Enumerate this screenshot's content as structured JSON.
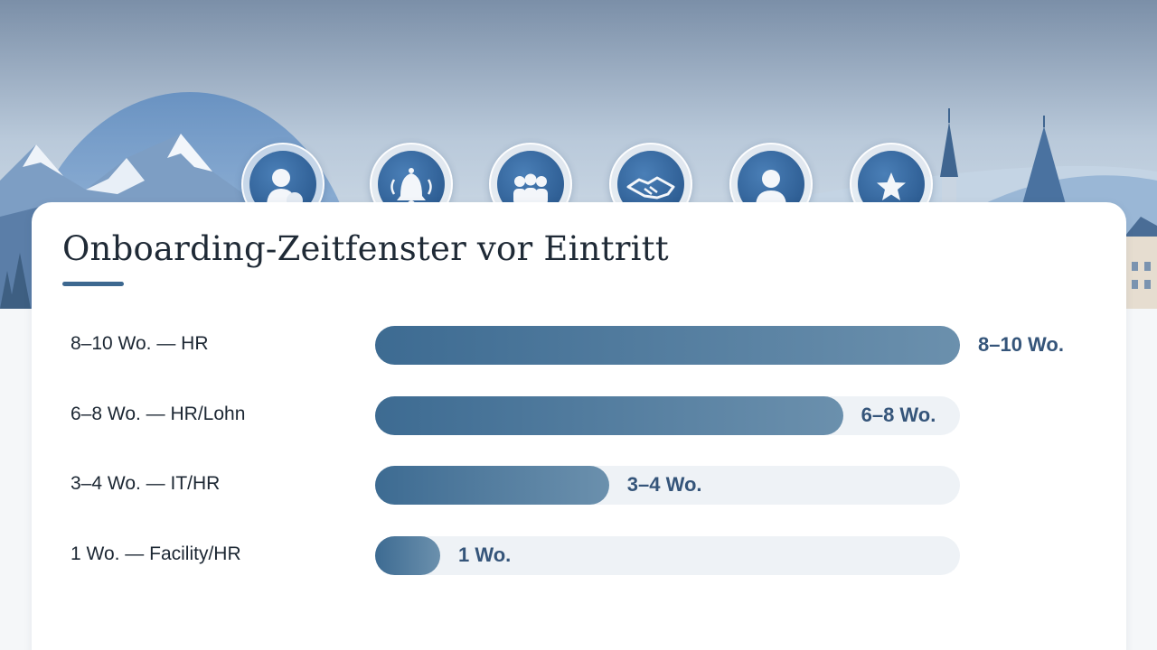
{
  "chart_data": {
    "type": "bar",
    "orientation": "horizontal",
    "title": "Onboarding-Zeitfenster vor Eintritt",
    "categories": [
      "8–10 Wo. — HR",
      "6–8 Wo. — HR/Lohn",
      "3–4 Wo. — IT/HR",
      "1 Wo. — Facility/HR"
    ],
    "values": [
      10,
      8,
      4,
      1
    ],
    "value_labels": [
      "8–10 Wo.",
      "6–8 Wo.",
      "3–4 Wo.",
      "1 Wo."
    ],
    "xlim": [
      0,
      10
    ],
    "grid": false,
    "legend": "none"
  },
  "header_icons": [
    "person-icon",
    "bell-icon",
    "team-icon",
    "handshake-icon",
    "user-icon",
    "star-icon"
  ],
  "colors": {
    "bar_start": "#3d6b92",
    "bar_end": "#6b90ad",
    "track": "#eef2f6",
    "value_text": "#35557a",
    "accent": "#3d6890"
  }
}
